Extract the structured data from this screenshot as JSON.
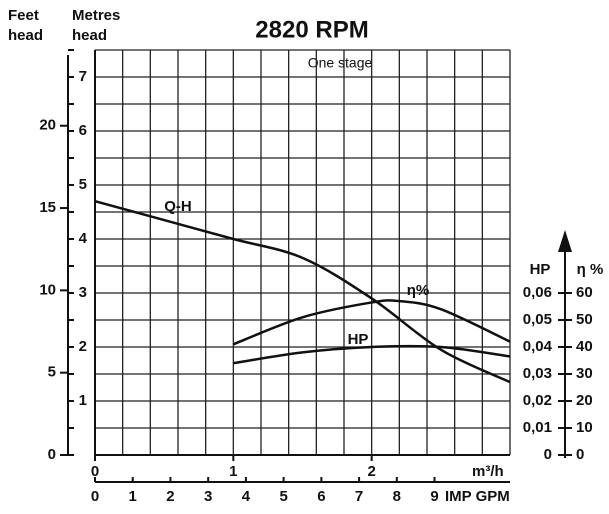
{
  "chart_data": {
    "type": "line",
    "title": "2820 RPM",
    "subtitle": "One stage",
    "y_label": [
      "Metres",
      "head"
    ],
    "feet_label": [
      "Feet",
      "head"
    ],
    "x_label": "m³/h",
    "gpm_label": "IMP GPM",
    "y2_label": "HP",
    "y3_label": "η %",
    "xlim": [
      0,
      3
    ],
    "xticks": [
      0,
      1,
      2
    ],
    "ylim": [
      0,
      7.5
    ],
    "yticks": [
      1,
      2,
      3,
      4,
      5,
      6,
      7
    ],
    "feet_lim": [
      0,
      24.6
    ],
    "feet_ticks": [
      0,
      5,
      10,
      15,
      20
    ],
    "gpm_lim": [
      0,
      11.0
    ],
    "gpm_ticks": [
      0,
      1,
      2,
      3,
      4,
      5,
      6,
      7,
      8,
      9
    ],
    "y2lim": [
      0,
      0.15
    ],
    "y2ticks": [
      0,
      {
        "value": 0.01,
        "label": "0,01"
      },
      {
        "value": 0.02,
        "label": "0,02"
      },
      {
        "value": 0.03,
        "label": "0,03"
      },
      {
        "value": 0.04,
        "label": "0,04"
      },
      {
        "value": 0.05,
        "label": "0,05"
      },
      {
        "value": 0.06,
        "label": "0,06"
      }
    ],
    "y3lim": [
      0,
      150
    ],
    "y3ticks": [
      0,
      10,
      20,
      30,
      40,
      50,
      60
    ],
    "xgrid": [
      0,
      0.2,
      0.4,
      0.6,
      0.8,
      1,
      1.2,
      1.4,
      1.6,
      1.8,
      2,
      2.2,
      2.4,
      2.6,
      2.8,
      3
    ],
    "ygrid": [
      0,
      0.5,
      1,
      1.5,
      2,
      2.5,
      3,
      3.5,
      4,
      4.5,
      5,
      5.5,
      6,
      6.5,
      7,
      7.5
    ],
    "series": [
      {
        "name": "Q-H",
        "color": "#111",
        "x": [
          0,
          0.5,
          1,
          1.5,
          2,
          2.5,
          3
        ],
        "values": [
          4.7,
          4.35,
          4.0,
          3.65,
          2.9,
          1.95,
          1.35
        ]
      },
      {
        "name": "η%",
        "color": "#111",
        "axis": "y3",
        "x": [
          1,
          1.5,
          2,
          2.2,
          2.5,
          3
        ],
        "values": [
          41,
          51,
          56.5,
          57,
          54,
          42
        ]
      },
      {
        "name": "HP",
        "color": "#111",
        "axis": "y2",
        "x": [
          1,
          1.5,
          2,
          2.5,
          3
        ],
        "values": [
          0.034,
          0.038,
          0.04,
          0.04,
          0.0365
        ]
      }
    ]
  }
}
